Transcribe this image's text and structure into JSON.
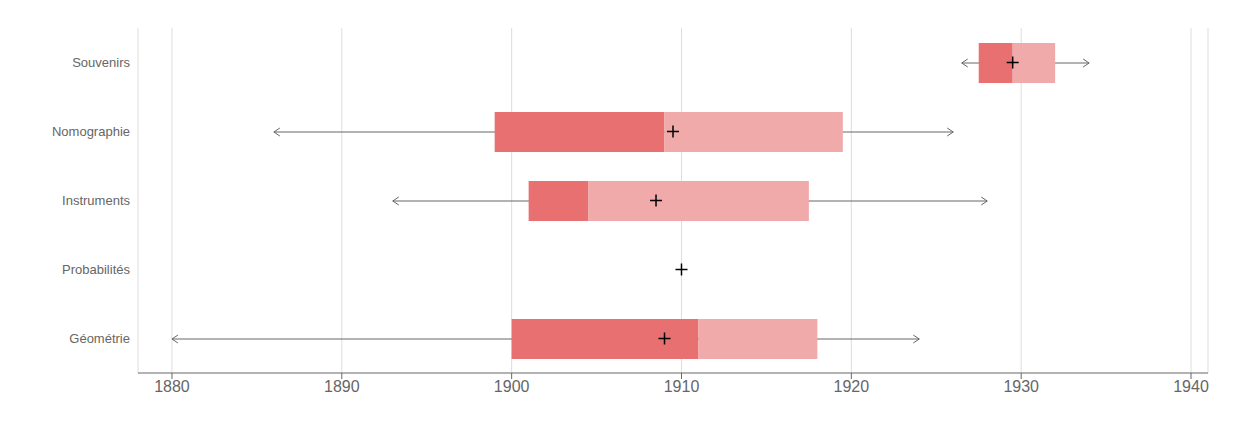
{
  "chart_data": {
    "type": "box",
    "orientation": "horizontal",
    "categories": [
      "Souvenirs",
      "Nomographie",
      "Instruments",
      "Probabilités",
      "Géométrie"
    ],
    "boxes": [
      {
        "whisker_min": 1926.5,
        "q1": 1927.5,
        "median": 1929.5,
        "q3": 1932.0,
        "whisker_max": 1934.0,
        "mean": 1929.5
      },
      {
        "whisker_min": 1886.0,
        "q1": 1899.0,
        "median": 1909.0,
        "q3": 1919.5,
        "whisker_max": 1926.0,
        "mean": 1909.5
      },
      {
        "whisker_min": 1893.0,
        "q1": 1901.0,
        "median": 1904.5,
        "q3": 1917.5,
        "whisker_max": 1928.0,
        "mean": 1908.5
      },
      {
        "whisker_min": null,
        "q1": null,
        "median": null,
        "q3": null,
        "whisker_max": null,
        "mean": 1910.0
      },
      {
        "whisker_min": 1880.0,
        "q1": 1900.0,
        "median": 1911.0,
        "q3": 1918.0,
        "whisker_max": 1924.0,
        "mean": 1909.0
      }
    ],
    "xlim": [
      1878,
      1941
    ],
    "xticks": [
      1880,
      1890,
      1900,
      1910,
      1920,
      1930,
      1940
    ],
    "grid": true,
    "colors": [
      "#E87070",
      "#F0AAAA"
    ],
    "marker": "plus"
  }
}
